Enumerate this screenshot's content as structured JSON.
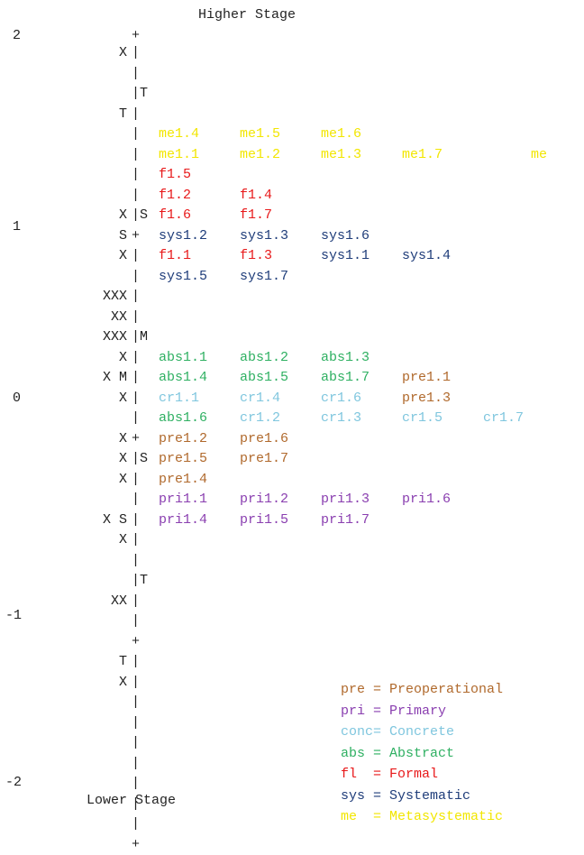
{
  "chart_data": {
    "type": "wright-map",
    "title_top": "Higher Stage",
    "title_bottom": "Lower Stage",
    "ylim": [
      -2,
      2
    ],
    "ticks": [
      "2",
      "1",
      "0",
      "-1",
      "-2"
    ],
    "colors": {
      "me": "#f2e600",
      "fl": "#e8191a",
      "sys": "#1f3d7a",
      "abs": "#2fb062",
      "cr": "#7fc6de",
      "pre": "#b0692c",
      "pri": "#8a3fb0"
    },
    "rows": [
      {
        "left": "X",
        "sep": "|",
        "items": []
      },
      {
        "left": "",
        "sep": "|",
        "items": []
      },
      {
        "left": "",
        "sep": "|T",
        "items": []
      },
      {
        "left": "T",
        "sep": "|",
        "items": []
      },
      {
        "left": "",
        "sep": "|",
        "items": [
          [
            "me1.4",
            "me"
          ],
          [
            "me1.5",
            "me"
          ],
          [
            "me1.6",
            "me"
          ]
        ]
      },
      {
        "left": "",
        "sep": "|",
        "items": [
          [
            "me1.1",
            "me"
          ],
          [
            "me1.2",
            "me"
          ],
          [
            "me1.3",
            "me"
          ],
          [
            "me1.7",
            "me"
          ],
          [
            "",
            "me"
          ],
          [
            "me",
            "me"
          ]
        ]
      },
      {
        "left": "",
        "sep": "|",
        "items": [
          [
            "f1.5",
            "fl"
          ]
        ]
      },
      {
        "left": "",
        "sep": "|",
        "items": [
          [
            "f1.2",
            "fl"
          ],
          [
            "f1.4",
            "fl"
          ]
        ]
      },
      {
        "left": "X",
        "sep": "|S",
        "items": [
          [
            "f1.6",
            "fl"
          ],
          [
            "f1.7",
            "fl"
          ]
        ]
      },
      {
        "left": "S",
        "sep": "+",
        "items": [
          [
            "sys1.2",
            "sys"
          ],
          [
            "sys1.3",
            "sys"
          ],
          [
            "sys1.6",
            "sys"
          ]
        ]
      },
      {
        "left": "X",
        "sep": "|",
        "items": [
          [
            "f1.1",
            "fl"
          ],
          [
            "f1.3",
            "fl"
          ],
          [
            "sys1.1",
            "sys"
          ],
          [
            "sys1.4",
            "sys"
          ]
        ]
      },
      {
        "left": "",
        "sep": "|",
        "items": [
          [
            "sys1.5",
            "sys"
          ],
          [
            "sys1.7",
            "sys"
          ]
        ]
      },
      {
        "left": "XXX",
        "sep": "|",
        "items": []
      },
      {
        "left": "XX",
        "sep": "|",
        "items": []
      },
      {
        "left": "XXX",
        "sep": "|M",
        "items": []
      },
      {
        "left": "X",
        "sep": "|",
        "items": [
          [
            "abs1.1",
            "abs"
          ],
          [
            "abs1.2",
            "abs"
          ],
          [
            "abs1.3",
            "abs"
          ]
        ]
      },
      {
        "left": "X M",
        "sep": "|",
        "items": [
          [
            "abs1.4",
            "abs"
          ],
          [
            "abs1.5",
            "abs"
          ],
          [
            "abs1.7",
            "abs"
          ],
          [
            "pre1.1",
            "pre"
          ]
        ]
      },
      {
        "left": "X",
        "sep": "|",
        "items": [
          [
            "cr1.1",
            "cr"
          ],
          [
            "cr1.4",
            "cr"
          ],
          [
            "cr1.6",
            "cr"
          ],
          [
            "pre1.3",
            "pre"
          ]
        ]
      },
      {
        "left": "",
        "sep": "|",
        "items": [
          [
            "abs1.6",
            "abs"
          ],
          [
            "cr1.2",
            "cr"
          ],
          [
            "cr1.3",
            "cr"
          ],
          [
            "cr1.5",
            "cr"
          ],
          [
            "cr1.7",
            "cr"
          ]
        ]
      },
      {
        "left": "X",
        "sep": "+",
        "items": [
          [
            "pre1.2",
            "pre"
          ],
          [
            "pre1.6",
            "pre"
          ]
        ]
      },
      {
        "left": "X",
        "sep": "|S",
        "items": [
          [
            "pre1.5",
            "pre"
          ],
          [
            "pre1.7",
            "pre"
          ]
        ]
      },
      {
        "left": "X",
        "sep": "|",
        "items": [
          [
            "pre1.4",
            "pre"
          ]
        ]
      },
      {
        "left": "",
        "sep": "|",
        "items": [
          [
            "pri1.1",
            "pri"
          ],
          [
            "pri1.2",
            "pri"
          ],
          [
            "pri1.3",
            "pri"
          ],
          [
            "pri1.6",
            "pri"
          ]
        ]
      },
      {
        "left": "X S",
        "sep": "|",
        "items": [
          [
            "pri1.4",
            "pri"
          ],
          [
            "pri1.5",
            "pri"
          ],
          [
            "pri1.7",
            "pri"
          ]
        ]
      },
      {
        "left": "X",
        "sep": "|",
        "items": []
      },
      {
        "left": "",
        "sep": "|",
        "items": []
      },
      {
        "left": "",
        "sep": "|T",
        "items": []
      },
      {
        "left": "XX",
        "sep": "|",
        "items": []
      },
      {
        "left": "",
        "sep": "|",
        "items": []
      },
      {
        "left": "",
        "sep": "+",
        "items": []
      },
      {
        "left": "T",
        "sep": "|",
        "items": []
      },
      {
        "left": "X",
        "sep": "|",
        "items": []
      },
      {
        "left": "",
        "sep": "|",
        "items": []
      },
      {
        "left": "",
        "sep": "|",
        "items": []
      },
      {
        "left": "",
        "sep": "|",
        "items": []
      },
      {
        "left": "",
        "sep": "|",
        "items": []
      },
      {
        "left": "",
        "sep": "|",
        "items": []
      },
      {
        "left": "",
        "sep": "|",
        "items": []
      },
      {
        "left": "",
        "sep": "|",
        "items": []
      },
      {
        "left": "",
        "sep": "+",
        "items": []
      }
    ],
    "legend": [
      {
        "code": "pre ",
        "label": "= Preoperational",
        "group": "pre"
      },
      {
        "code": "pri ",
        "label": "= Primary",
        "group": "pri"
      },
      {
        "code": "conc",
        "label": "= Concrete",
        "group": "cr"
      },
      {
        "code": "abs ",
        "label": "= Abstract",
        "group": "abs"
      },
      {
        "code": "fl  ",
        "label": "= Formal",
        "group": "fl"
      },
      {
        "code": "sys ",
        "label": "= Systematic",
        "group": "sys"
      },
      {
        "code": "me  ",
        "label": "= Metasystematic",
        "group": "me"
      }
    ]
  }
}
